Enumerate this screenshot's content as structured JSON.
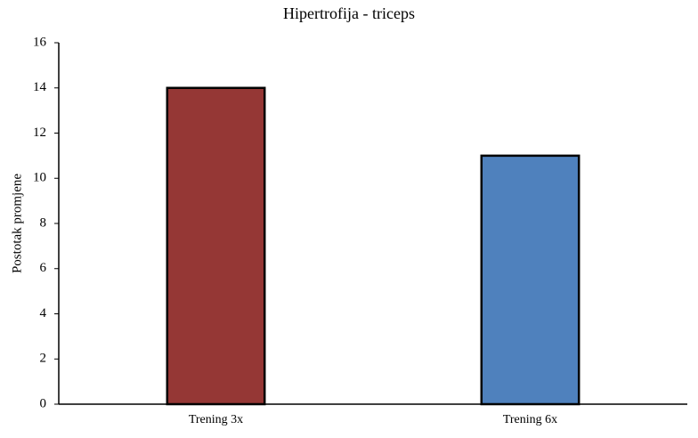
{
  "chart_data": {
    "type": "bar",
    "title": "Hipertrofija - triceps",
    "y_label": "Postotak promjene",
    "categories": [
      "Trening 3x",
      "Trening 6x"
    ],
    "values": [
      14,
      11
    ],
    "colors": [
      "#953735",
      "#4f81bd"
    ],
    "ylim": [
      0,
      16
    ],
    "yticks": [
      0,
      2,
      4,
      6,
      8,
      10,
      12,
      14,
      16
    ],
    "grid": false
  }
}
